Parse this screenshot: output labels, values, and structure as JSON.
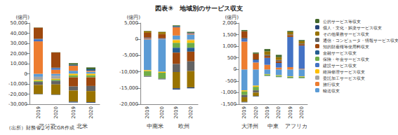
{
  "title": "図表⑨　地域別のサービス収支",
  "source": "（出所）財務省よりSCGR作成",
  "chart_data": [
    {
      "type": "bar",
      "stacked": true,
      "legend": "right",
      "grid": false,
      "ylabel": "(億円)",
      "categories": [
        "2019",
        "2020",
        "2019",
        "2020"
      ],
      "group_labels": [
        "アジア",
        "北米"
      ],
      "ylim": [
        -30000,
        50000
      ],
      "yticks": [
        {
          "value": -30000,
          "label": "-30,000"
        },
        {
          "value": -20000,
          "label": "-20,000"
        },
        {
          "value": -10000,
          "label": "-10,000"
        },
        0,
        {
          "value": 10000,
          "label": "10,000"
        },
        {
          "value": 20000,
          "label": "20,000"
        },
        {
          "value": 30000,
          "label": "30,000"
        },
        {
          "value": 40000,
          "label": "40,000"
        },
        {
          "value": 50000,
          "label": "50,000"
        }
      ],
      "series": [
        {
          "name": "公的サービス等収支",
          "color": "#43682B",
          "values": [
            200,
            200,
            1500,
            1800
          ]
        },
        {
          "name": "個人・文化・娯楽サービス収支",
          "color": "#264478",
          "values": [
            -300,
            -300,
            -800,
            -600
          ]
        },
        {
          "name": "その他業務サービス収支",
          "color": "#997300",
          "values": [
            -9000,
            -10000,
            -11000,
            -11000
          ]
        },
        {
          "name": "通信・コンピュータ・情報サービス収支",
          "color": "#636363",
          "values": [
            -3000,
            -3500,
            -4000,
            -5000
          ]
        },
        {
          "name": "知的財産権等使用料収支",
          "color": "#9E480E",
          "values": [
            11000,
            15000,
            -9000,
            -8500
          ]
        },
        {
          "name": "金融サービス収支",
          "color": "#255E91",
          "values": [
            500,
            500,
            1000,
            1500
          ]
        },
        {
          "name": "保険・年金サービス収支",
          "color": "#70AD47",
          "values": [
            -1000,
            -1200,
            -2000,
            -2000
          ]
        },
        {
          "name": "建設サービス収支",
          "color": "#4472C4",
          "values": [
            2000,
            1500,
            0,
            0
          ]
        },
        {
          "name": "維持修理サービス収支",
          "color": "#FFC000",
          "values": [
            -1000,
            -800,
            -1500,
            -1500
          ]
        },
        {
          "name": "委託加工サービス収支",
          "color": "#A5A5A5",
          "values": [
            -3000,
            -3000,
            0,
            0
          ]
        },
        {
          "name": "旅行収支",
          "color": "#ED7D31",
          "values": [
            32000,
            4000,
            5000,
            1000
          ]
        },
        {
          "name": "輸送収支",
          "color": "#5B9BD5",
          "values": [
            -3000,
            -2000,
            3000,
            2000
          ]
        }
      ]
    },
    {
      "type": "bar",
      "stacked": true,
      "grid": false,
      "ylabel": "(億円)",
      "categories": [
        "2019",
        "2020",
        "2019",
        "2020"
      ],
      "group_labels": [
        "中南米",
        "欧州"
      ],
      "ylim": [
        -20000,
        5000
      ],
      "yticks": [
        {
          "value": -20000,
          "label": "-20,000"
        },
        {
          "value": -15000,
          "label": "-15,000"
        },
        {
          "value": -10000,
          "label": "-10,000"
        },
        {
          "value": -5000,
          "label": "-5,000"
        },
        0,
        {
          "value": 5000,
          "label": "5,000"
        }
      ],
      "series": [
        {
          "name": "公的サービス等収支",
          "color": "#43682B",
          "values": [
            100,
            100,
            300,
            300
          ]
        },
        {
          "name": "個人・文化・娯楽サービス収支",
          "color": "#264478",
          "values": [
            -50,
            -50,
            -400,
            -300
          ]
        },
        {
          "name": "その他業務サービス収支",
          "color": "#997300",
          "values": [
            500,
            600,
            -5000,
            -5000
          ]
        },
        {
          "name": "通信・コンピュータ・情報サービス収支",
          "color": "#636363",
          "values": [
            -200,
            -200,
            -2500,
            -3000
          ]
        },
        {
          "name": "知的財産権等使用料収支",
          "color": "#9E480E",
          "values": [
            1500,
            1300,
            -3500,
            -3000
          ]
        },
        {
          "name": "金融サービス収支",
          "color": "#255E91",
          "values": [
            0,
            0,
            -1500,
            -1200
          ]
        },
        {
          "name": "保険・年金サービス収支",
          "color": "#70AD47",
          "values": [
            -1500,
            -1800,
            -1500,
            -1500
          ]
        },
        {
          "name": "建設サービス収支",
          "color": "#4472C4",
          "values": [
            200,
            200,
            300,
            200
          ]
        },
        {
          "name": "維持修理サービス収支",
          "color": "#FFC000",
          "values": [
            -300,
            -300,
            -800,
            -800
          ]
        },
        {
          "name": "委託加工サービス収支",
          "color": "#A5A5A5",
          "values": [
            0,
            0,
            -300,
            -300
          ]
        },
        {
          "name": "旅行収支",
          "color": "#ED7D31",
          "values": [
            300,
            100,
            2500,
            300
          ]
        },
        {
          "name": "輸送収支",
          "color": "#5B9BD5",
          "values": [
            -9500,
            -10000,
            1200,
            1500
          ]
        }
      ]
    },
    {
      "type": "bar",
      "stacked": true,
      "grid": false,
      "ylabel": "(億円)",
      "categories": [
        "2019",
        "2020",
        "2019",
        "2020",
        "2019",
        "2020"
      ],
      "group_labels": [
        "大洋州",
        "中東",
        "アフリカ"
      ],
      "ylim": [
        -1500,
        2000
      ],
      "yticks": [
        {
          "value": -1500,
          "label": "-1,500"
        },
        {
          "value": -1000,
          "label": "-1,000"
        },
        -500,
        0,
        500,
        {
          "value": 1000,
          "label": "1,000"
        },
        {
          "value": 1500,
          "label": "1,500"
        },
        {
          "value": 2000,
          "label": "2,000"
        }
      ],
      "series": [
        {
          "name": "公的サービス等収支",
          "color": "#43682B",
          "values": [
            50,
            50,
            100,
            100,
            50,
            50
          ]
        },
        {
          "name": "個人・文化・娯楽サービス収支",
          "color": "#264478",
          "values": [
            -20,
            -20,
            -10,
            -10,
            -10,
            -10
          ]
        },
        {
          "name": "その他業務サービス収支",
          "color": "#997300",
          "values": [
            -200,
            -150,
            150,
            120,
            100,
            100
          ]
        },
        {
          "name": "通信・コンピュータ・情報サービス収支",
          "color": "#636363",
          "values": [
            -100,
            -100,
            50,
            50,
            30,
            30
          ]
        },
        {
          "name": "知的財産権等使用料収支",
          "color": "#9E480E",
          "values": [
            300,
            250,
            80,
            80,
            80,
            60
          ]
        },
        {
          "name": "金融サービス収支",
          "color": "#255E91",
          "values": [
            50,
            30,
            0,
            0,
            0,
            0
          ]
        },
        {
          "name": "保険・年金サービス収支",
          "color": "#70AD47",
          "values": [
            -150,
            -150,
            -50,
            -50,
            -50,
            -50
          ]
        },
        {
          "name": "建設サービス収支",
          "color": "#4472C4",
          "values": [
            100,
            100,
            300,
            200,
            1300,
            1000
          ]
        },
        {
          "name": "維持修理サービス収支",
          "color": "#FFC000",
          "values": [
            -50,
            -50,
            -20,
            -20,
            -20,
            -20
          ]
        },
        {
          "name": "委託加工サービス収支",
          "color": "#A5A5A5",
          "values": [
            0,
            0,
            0,
            0,
            0,
            0
          ]
        },
        {
          "name": "旅行収支",
          "color": "#ED7D31",
          "values": [
            1200,
            300,
            200,
            80,
            100,
            30
          ]
        },
        {
          "name": "輸送収支",
          "color": "#5B9BD5",
          "values": [
            -900,
            -700,
            -200,
            -250,
            -300,
            -300
          ]
        }
      ]
    }
  ]
}
